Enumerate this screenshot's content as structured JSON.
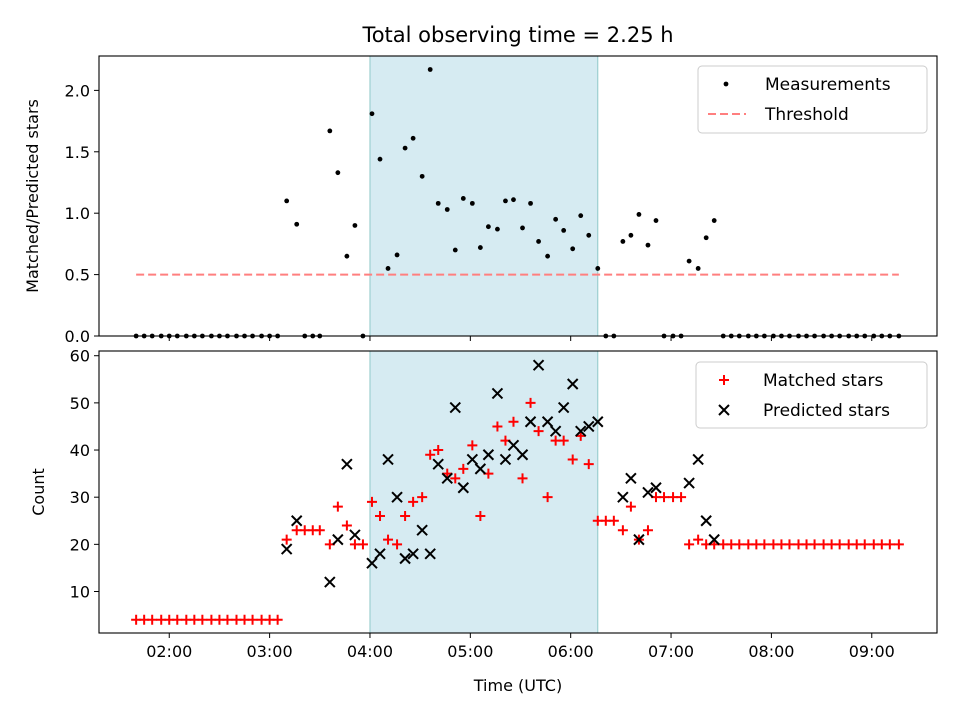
{
  "chart_data": {
    "type": "scatter",
    "title": "Total observing time = 2.25 h",
    "xlabel": "Time (UTC)",
    "x_ticks": [
      "02:00",
      "03:00",
      "04:00",
      "05:00",
      "06:00",
      "07:00",
      "08:00",
      "09:00"
    ],
    "x_range_hours": [
      1.3,
      9.65
    ],
    "highlight_span_hours": [
      4.0,
      6.27
    ],
    "highlight_color": "#add8e6",
    "panels": [
      {
        "ylabel": "Matched/Predicted stars",
        "ylim": [
          0,
          2.28
        ],
        "y_ticks": [
          0.0,
          0.5,
          1.0,
          1.5,
          2.0
        ],
        "legend_position": "top-right",
        "series": [
          {
            "name": "Measurements",
            "marker": "dot",
            "color": "#000000",
            "points": [
              [
                1.67,
                0
              ],
              [
                1.75,
                0
              ],
              [
                1.83,
                0
              ],
              [
                1.92,
                0
              ],
              [
                2.0,
                0
              ],
              [
                2.08,
                0
              ],
              [
                2.17,
                0
              ],
              [
                2.25,
                0
              ],
              [
                2.33,
                0
              ],
              [
                2.42,
                0
              ],
              [
                2.5,
                0
              ],
              [
                2.58,
                0
              ],
              [
                2.67,
                0
              ],
              [
                2.75,
                0
              ],
              [
                2.83,
                0
              ],
              [
                2.92,
                0
              ],
              [
                3.0,
                0
              ],
              [
                3.08,
                0
              ],
              [
                3.17,
                1.1
              ],
              [
                3.27,
                0.91
              ],
              [
                3.35,
                0
              ],
              [
                3.43,
                0
              ],
              [
                3.5,
                0
              ],
              [
                3.6,
                1.67
              ],
              [
                3.68,
                1.33
              ],
              [
                3.77,
                0.65
              ],
              [
                3.85,
                0.9
              ],
              [
                3.93,
                0
              ],
              [
                4.02,
                1.81
              ],
              [
                4.1,
                1.44
              ],
              [
                4.18,
                0.55
              ],
              [
                4.27,
                0.66
              ],
              [
                4.35,
                1.53
              ],
              [
                4.43,
                1.61
              ],
              [
                4.52,
                1.3
              ],
              [
                4.6,
                2.17
              ],
              [
                4.68,
                1.08
              ],
              [
                4.77,
                1.03
              ],
              [
                4.85,
                0.7
              ],
              [
                4.93,
                1.12
              ],
              [
                5.02,
                1.08
              ],
              [
                5.1,
                0.72
              ],
              [
                5.18,
                0.89
              ],
              [
                5.27,
                0.87
              ],
              [
                5.35,
                1.1
              ],
              [
                5.43,
                1.11
              ],
              [
                5.52,
                0.88
              ],
              [
                5.6,
                1.08
              ],
              [
                5.68,
                0.77
              ],
              [
                5.77,
                0.65
              ],
              [
                5.85,
                0.95
              ],
              [
                5.93,
                0.86
              ],
              [
                6.02,
                0.71
              ],
              [
                6.1,
                0.98
              ],
              [
                6.18,
                0.82
              ],
              [
                6.27,
                0.55
              ],
              [
                6.35,
                0
              ],
              [
                6.43,
                0
              ],
              [
                6.52,
                0.77
              ],
              [
                6.6,
                0.82
              ],
              [
                6.68,
                0.99
              ],
              [
                6.77,
                0.74
              ],
              [
                6.85,
                0.94
              ],
              [
                6.93,
                0
              ],
              [
                7.02,
                0
              ],
              [
                7.1,
                0
              ],
              [
                7.18,
                0.61
              ],
              [
                7.27,
                0.55
              ],
              [
                7.35,
                0.8
              ],
              [
                7.43,
                0.94
              ],
              [
                7.52,
                0
              ],
              [
                7.6,
                0
              ],
              [
                7.68,
                0
              ],
              [
                7.77,
                0
              ],
              [
                7.85,
                0
              ],
              [
                7.93,
                0
              ],
              [
                8.02,
                0
              ],
              [
                8.1,
                0
              ],
              [
                8.18,
                0
              ],
              [
                8.27,
                0
              ],
              [
                8.35,
                0
              ],
              [
                8.43,
                0
              ],
              [
                8.52,
                0
              ],
              [
                8.6,
                0
              ],
              [
                8.68,
                0
              ],
              [
                8.77,
                0
              ],
              [
                8.85,
                0
              ],
              [
                8.93,
                0
              ],
              [
                9.02,
                0
              ],
              [
                9.1,
                0
              ],
              [
                9.18,
                0
              ],
              [
                9.27,
                0
              ]
            ]
          },
          {
            "name": "Threshold",
            "marker": "dashed-line",
            "color": "#ff7f7f",
            "points": [
              [
                1.67,
                0.5
              ],
              [
                9.27,
                0.5
              ]
            ]
          }
        ]
      },
      {
        "ylabel": "Count",
        "ylim": [
          1.2,
          61
        ],
        "y_ticks": [
          10,
          20,
          30,
          40,
          50,
          60
        ],
        "legend_position": "top-right",
        "series": [
          {
            "name": "Matched stars",
            "marker": "plus",
            "color": "#ff0000",
            "points": [
              [
                1.67,
                4
              ],
              [
                1.75,
                4
              ],
              [
                1.83,
                4
              ],
              [
                1.92,
                4
              ],
              [
                2.0,
                4
              ],
              [
                2.08,
                4
              ],
              [
                2.17,
                4
              ],
              [
                2.25,
                4
              ],
              [
                2.33,
                4
              ],
              [
                2.42,
                4
              ],
              [
                2.5,
                4
              ],
              [
                2.58,
                4
              ],
              [
                2.67,
                4
              ],
              [
                2.75,
                4
              ],
              [
                2.83,
                4
              ],
              [
                2.92,
                4
              ],
              [
                3.0,
                4
              ],
              [
                3.08,
                4
              ],
              [
                3.17,
                21
              ],
              [
                3.27,
                23
              ],
              [
                3.35,
                23
              ],
              [
                3.43,
                23
              ],
              [
                3.5,
                23
              ],
              [
                3.6,
                20
              ],
              [
                3.68,
                28
              ],
              [
                3.77,
                24
              ],
              [
                3.85,
                20
              ],
              [
                3.93,
                20
              ],
              [
                4.02,
                29
              ],
              [
                4.1,
                26
              ],
              [
                4.18,
                21
              ],
              [
                4.27,
                20
              ],
              [
                4.35,
                26
              ],
              [
                4.43,
                29
              ],
              [
                4.52,
                30
              ],
              [
                4.6,
                39
              ],
              [
                4.68,
                40
              ],
              [
                4.77,
                35
              ],
              [
                4.85,
                34
              ],
              [
                4.93,
                36
              ],
              [
                5.02,
                41
              ],
              [
                5.1,
                26
              ],
              [
                5.18,
                35
              ],
              [
                5.27,
                45
              ],
              [
                5.35,
                42
              ],
              [
                5.43,
                46
              ],
              [
                5.52,
                34
              ],
              [
                5.6,
                50
              ],
              [
                5.68,
                44
              ],
              [
                5.77,
                30
              ],
              [
                5.85,
                42
              ],
              [
                5.93,
                42
              ],
              [
                6.02,
                38
              ],
              [
                6.1,
                43
              ],
              [
                6.18,
                37
              ],
              [
                6.27,
                25
              ],
              [
                6.35,
                25
              ],
              [
                6.43,
                25
              ],
              [
                6.52,
                23
              ],
              [
                6.6,
                28
              ],
              [
                6.68,
                21
              ],
              [
                6.77,
                23
              ],
              [
                6.85,
                30
              ],
              [
                6.93,
                30
              ],
              [
                7.02,
                30
              ],
              [
                7.1,
                30
              ],
              [
                7.18,
                20
              ],
              [
                7.27,
                21
              ],
              [
                7.35,
                20
              ],
              [
                7.43,
                20
              ],
              [
                7.52,
                20
              ],
              [
                7.6,
                20
              ],
              [
                7.68,
                20
              ],
              [
                7.77,
                20
              ],
              [
                7.85,
                20
              ],
              [
                7.93,
                20
              ],
              [
                8.02,
                20
              ],
              [
                8.1,
                20
              ],
              [
                8.18,
                20
              ],
              [
                8.27,
                20
              ],
              [
                8.35,
                20
              ],
              [
                8.43,
                20
              ],
              [
                8.52,
                20
              ],
              [
                8.6,
                20
              ],
              [
                8.68,
                20
              ],
              [
                8.77,
                20
              ],
              [
                8.85,
                20
              ],
              [
                8.93,
                20
              ],
              [
                9.02,
                20
              ],
              [
                9.1,
                20
              ],
              [
                9.18,
                20
              ],
              [
                9.27,
                20
              ]
            ]
          },
          {
            "name": "Predicted stars",
            "marker": "x",
            "color": "#000000",
            "points": [
              [
                3.17,
                19
              ],
              [
                3.27,
                25
              ],
              [
                3.6,
                12
              ],
              [
                3.68,
                21
              ],
              [
                3.77,
                37
              ],
              [
                3.85,
                22
              ],
              [
                4.02,
                16
              ],
              [
                4.1,
                18
              ],
              [
                4.18,
                38
              ],
              [
                4.27,
                30
              ],
              [
                4.35,
                17
              ],
              [
                4.43,
                18
              ],
              [
                4.52,
                23
              ],
              [
                4.6,
                18
              ],
              [
                4.68,
                37
              ],
              [
                4.77,
                34
              ],
              [
                4.85,
                49
              ],
              [
                4.93,
                32
              ],
              [
                5.02,
                38
              ],
              [
                5.1,
                36
              ],
              [
                5.18,
                39
              ],
              [
                5.27,
                52
              ],
              [
                5.35,
                38
              ],
              [
                5.43,
                41
              ],
              [
                5.52,
                39
              ],
              [
                5.6,
                46
              ],
              [
                5.68,
                58
              ],
              [
                5.77,
                46
              ],
              [
                5.85,
                44
              ],
              [
                5.93,
                49
              ],
              [
                6.02,
                54
              ],
              [
                6.1,
                44
              ],
              [
                6.18,
                45
              ],
              [
                6.27,
                46
              ],
              [
                6.52,
                30
              ],
              [
                6.6,
                34
              ],
              [
                6.68,
                21
              ],
              [
                6.77,
                31
              ],
              [
                6.85,
                32
              ],
              [
                7.18,
                33
              ],
              [
                7.27,
                38
              ],
              [
                7.35,
                25
              ],
              [
                7.43,
                21
              ]
            ]
          }
        ]
      }
    ]
  }
}
